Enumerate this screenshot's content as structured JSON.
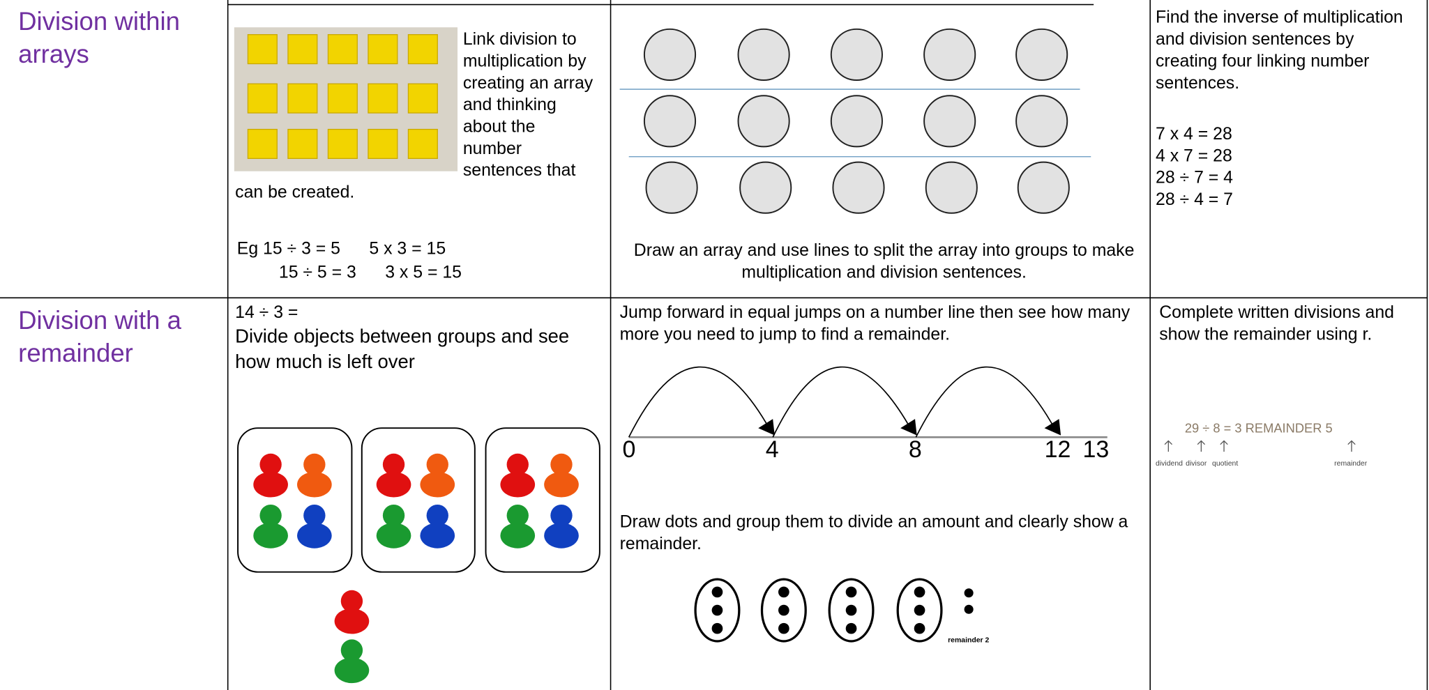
{
  "table": {
    "rows": [
      {
        "heading": "Division within arrays",
        "method": {
          "text": "Link division to multiplication by creating an array and thinking about the number sentences that can be created.",
          "examples": [
            "Eg 15 ÷ 3 = 5      5 x 3 = 15",
            "15 ÷ 5 = 3      3 x 5 = 15"
          ]
        },
        "representation": {
          "caption": "Draw an array and use lines to split the array into groups to make multiplication and division sentences."
        },
        "abstract": {
          "text": "Find the inverse of multiplication and division sentences by creating four linking number sentences.",
          "sentences": [
            "7 x 4 = 28",
            "4 x 7 = 28",
            "28 ÷ 7 = 4",
            "28 ÷ 4 = 7"
          ]
        }
      },
      {
        "heading": "Division with a remainder",
        "method": {
          "sum": "14 ÷ 3 =",
          "text": "Divide objects between groups and see how much is left over"
        },
        "representation": {
          "text": "Jump forward in equal jumps on a number line then see how many more you need to jump to find a remainder.",
          "number_line": [
            "0",
            "4",
            "8",
            "12",
            "13"
          ],
          "dots_text": "Draw dots and group them to divide an amount and clearly show a remainder.",
          "dots_label": "remainder 2"
        },
        "abstract": {
          "text": "Complete written divisions and show the remainder using r.",
          "example": "29 ÷ 8 = 3 REMAINDER 5",
          "labels": [
            "dividend",
            "divisor",
            "quotient",
            "remainder"
          ]
        }
      }
    ]
  }
}
